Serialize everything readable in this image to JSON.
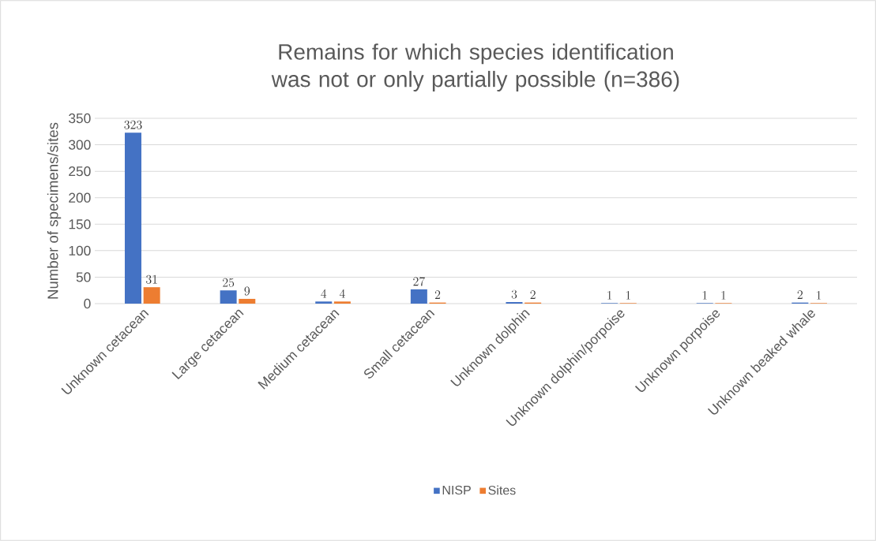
{
  "chart_data": {
    "type": "bar",
    "title": "Remains for which species identification was not or only partially possible (n=386)",
    "ylabel": "Number of specimens/sites",
    "categories": [
      "Unknown cetacean",
      "Large cetacean",
      "Medium cetacean",
      "Small cetacean",
      "Unknown dolphin",
      "Unknown dolphin/porpoise",
      "Unknown porpoise",
      "Unknown beaked whale"
    ],
    "series": [
      {
        "name": "NISP",
        "color": "#4472c4",
        "values": [
          323,
          25,
          4,
          27,
          3,
          1,
          1,
          2
        ]
      },
      {
        "name": "Sites",
        "color": "#ed7d31",
        "values": [
          31,
          9,
          4,
          2,
          2,
          1,
          1,
          1
        ]
      }
    ],
    "ylim": [
      0,
      350
    ],
    "yticks": [
      0,
      50,
      100,
      150,
      200,
      250,
      300,
      350
    ],
    "grid": "y",
    "legend": "bottom",
    "data_labels": true
  }
}
